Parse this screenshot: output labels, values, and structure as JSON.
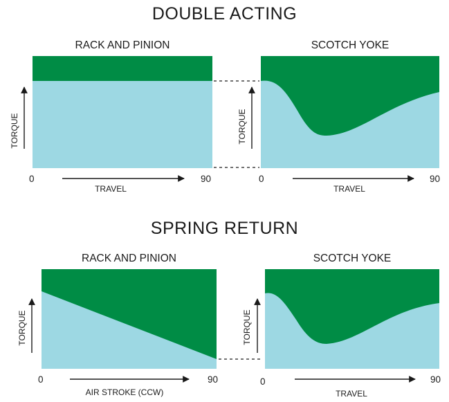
{
  "sections": [
    {
      "title": "DOUBLE ACTING"
    },
    {
      "title": "SPRING RETURN"
    }
  ],
  "panels": {
    "da_rp": {
      "title": "RACK AND PINION",
      "x_start": "0",
      "x_end": "90",
      "x_label": "TRAVEL",
      "y_label": "TORQUE"
    },
    "da_sy": {
      "title": "SCOTCH YOKE",
      "x_start": "0",
      "x_end": "90",
      "x_label": "TRAVEL",
      "y_label": "TORQUE"
    },
    "sr_rp": {
      "title": "RACK AND PINION",
      "x_start": "0",
      "x_end": "90",
      "x_label": "AIR STROKE (CCW)",
      "y_label": "TORQUE"
    },
    "sr_sy": {
      "title": "SCOTCH YOKE",
      "x_start": "0",
      "x_end": "90",
      "x_label": "TRAVEL",
      "y_label": "TORQUE"
    }
  },
  "colors": {
    "top_area": "#008c45",
    "bottom_area": "#9dd8e3",
    "ink": "#1a1a1a"
  }
}
